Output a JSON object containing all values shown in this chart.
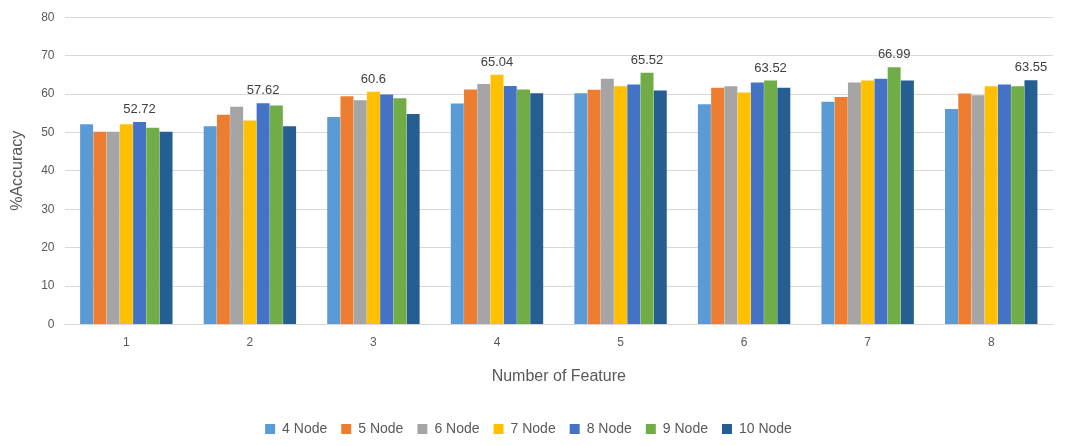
{
  "chart_data": {
    "type": "bar",
    "xlabel": "Number of Feature",
    "ylabel": "%Accuracy",
    "categories": [
      "1",
      "2",
      "3",
      "4",
      "5",
      "6",
      "7",
      "8"
    ],
    "series": [
      {
        "name": "4 Node",
        "color": "#5b9bd5",
        "values": [
          52.1,
          51.6,
          54.0,
          57.5,
          60.2,
          57.3,
          58.0,
          56.1
        ]
      },
      {
        "name": "5 Node",
        "color": "#ed7d31",
        "values": [
          50.2,
          54.6,
          59.4,
          61.2,
          61.1,
          61.6,
          59.2,
          60.1
        ]
      },
      {
        "name": "6 Node",
        "color": "#a5a5a5",
        "values": [
          50.2,
          56.7,
          58.4,
          62.6,
          64.0,
          62.0,
          63.0,
          59.7
        ]
      },
      {
        "name": "7 Node",
        "color": "#ffc000",
        "values": [
          52.1,
          53.1,
          60.6,
          65.04,
          62.0,
          60.4,
          63.5,
          62.0
        ],
        "value_labels": [
          null,
          null,
          "60.6",
          "65.04",
          null,
          null,
          null,
          null
        ]
      },
      {
        "name": "8 Node",
        "color": "#4472c4",
        "values": [
          52.72,
          57.62,
          59.9,
          62.1,
          62.5,
          63.0,
          64.0,
          62.5
        ],
        "value_labels": [
          "52.72",
          "57.62",
          null,
          null,
          null,
          null,
          null,
          null
        ]
      },
      {
        "name": "9 Node",
        "color": "#70ad47",
        "values": [
          51.2,
          57.0,
          58.9,
          61.2,
          65.52,
          63.52,
          66.99,
          62.0
        ],
        "value_labels": [
          null,
          null,
          null,
          null,
          "65.52",
          "63.52",
          "66.99",
          null
        ]
      },
      {
        "name": "10 Node",
        "color": "#255e91",
        "values": [
          50.2,
          51.6,
          54.8,
          60.2,
          60.9,
          61.6,
          63.5,
          63.55
        ],
        "value_labels": [
          null,
          null,
          null,
          null,
          null,
          null,
          null,
          "63.55"
        ]
      }
    ],
    "ylim": [
      0,
      80
    ],
    "yticks": [
      0,
      10,
      20,
      30,
      40,
      50,
      60,
      70,
      80
    ],
    "grid": "y",
    "legend": "bottom"
  }
}
